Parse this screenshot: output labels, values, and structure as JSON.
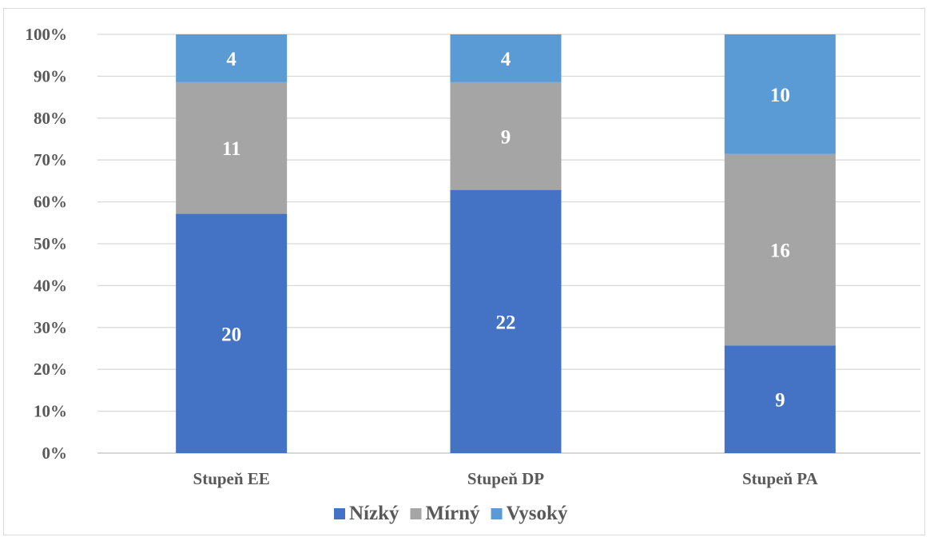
{
  "chart_data": {
    "type": "bar",
    "stacked": "percent",
    "categories": [
      "Stupeň EE",
      "Stupeň DP",
      "Stupeň PA"
    ],
    "series": [
      {
        "name": "Nízký",
        "values": [
          20,
          22,
          9
        ],
        "color": "#4472c4"
      },
      {
        "name": "Mírný",
        "values": [
          11,
          9,
          16
        ],
        "color": "#a5a5a5"
      },
      {
        "name": "Vysoký",
        "values": [
          4,
          4,
          10
        ],
        "color": "#5b9bd5"
      }
    ],
    "yticks": [
      "0%",
      "10%",
      "20%",
      "30%",
      "40%",
      "50%",
      "60%",
      "70%",
      "80%",
      "90%",
      "100%"
    ],
    "ylim": [
      0,
      100
    ],
    "grid": true,
    "legend_position": "bottom",
    "title": "",
    "xlabel": "",
    "ylabel": ""
  }
}
